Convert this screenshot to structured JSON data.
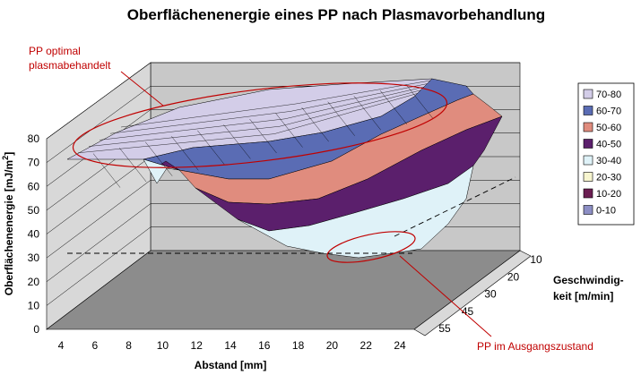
{
  "chart_data": {
    "type": "surface",
    "title": "Oberflächenenergie eines PP nach Plasmavorbehandlung",
    "zlabel": "Oberflächenenergie [mJ/m",
    "zlabel_sup": "2",
    "zlabel_end": "]",
    "xlabel": "Abstand [mm]",
    "ylabel_line1": "Geschwindig-",
    "ylabel_line2": "keit [m/min]",
    "x_ticks": [
      "4",
      "6",
      "8",
      "10",
      "12",
      "14",
      "16",
      "18",
      "20",
      "22",
      "24"
    ],
    "depth_ticks": [
      "10",
      "20",
      "30",
      "45",
      "55"
    ],
    "z_ticks": [
      "0",
      "10",
      "20",
      "30",
      "40",
      "50",
      "60",
      "70",
      "80"
    ],
    "zlim": [
      0,
      80
    ],
    "legend": [
      {
        "label": "70-80",
        "color": "#d3cde8"
      },
      {
        "label": "60-70",
        "color": "#5a6cb4"
      },
      {
        "label": "50-60",
        "color": "#e08c7e"
      },
      {
        "label": "40-50",
        "color": "#5b1f6c"
      },
      {
        "label": "30-40",
        "color": "#dff2f8"
      },
      {
        "label": "20-30",
        "color": "#f7f5cf"
      },
      {
        "label": "10-20",
        "color": "#6b1e52"
      },
      {
        "label": "0-10",
        "color": "#8c8ec4"
      }
    ],
    "annotations": [
      {
        "line1": "PP optimal",
        "line2": "plasmabehandelt"
      },
      {
        "line1": "PP im Ausgangszustand"
      }
    ]
  }
}
